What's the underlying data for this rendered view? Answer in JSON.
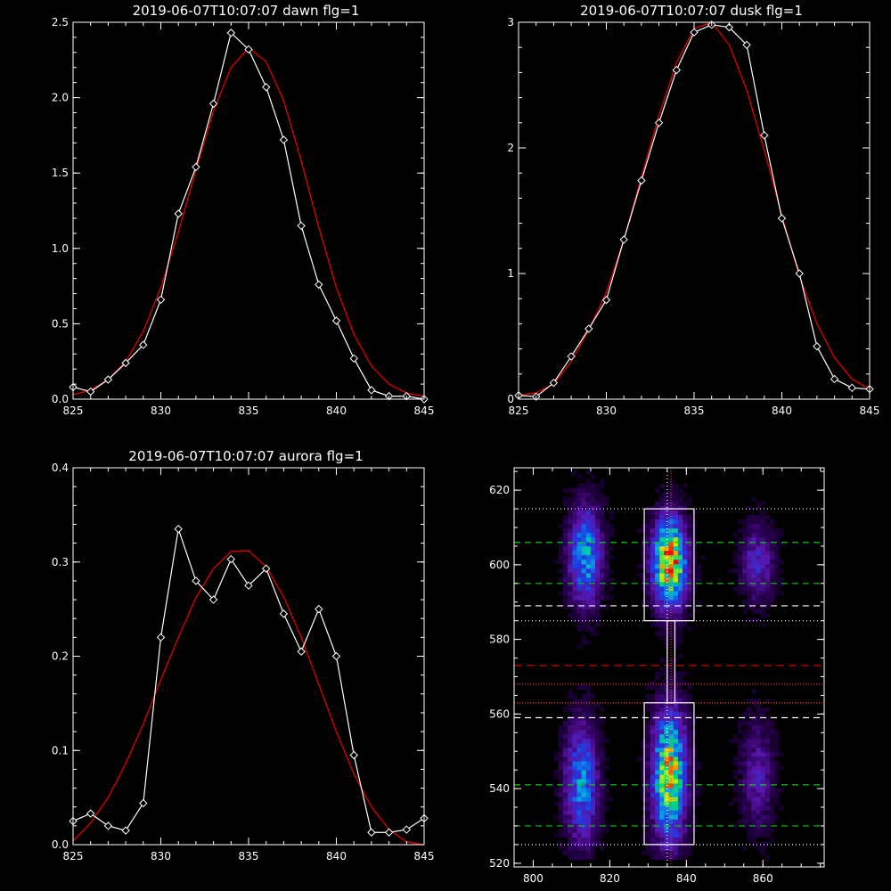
{
  "colors": {
    "background": "#000000",
    "axes": "#ffffff",
    "data_line": "#ffffff",
    "fit_line": "#e00000",
    "green_dash": "#00d000",
    "white_dash": "#ffffff",
    "red_dash": "#d00000"
  },
  "chart_data": [
    {
      "type": "line",
      "title": "2019-06-07T10:07:07 dawn flg=1",
      "xlim": [
        825,
        845
      ],
      "ylim": [
        0,
        2.5
      ],
      "xticks": [
        "825",
        "830",
        "835",
        "840",
        "845"
      ],
      "yticks": [
        "0.0",
        "0.5",
        "1.0",
        "1.5",
        "2.0",
        "2.5"
      ],
      "series": [
        {
          "x": [
            825,
            826,
            827,
            828,
            829,
            830,
            831,
            832,
            833,
            834,
            835,
            836,
            837,
            838,
            839,
            840,
            841,
            842,
            843,
            844,
            845
          ],
          "y": [
            0.08,
            0.05,
            0.13,
            0.24,
            0.36,
            0.66,
            1.23,
            1.54,
            1.96,
            2.43,
            2.32,
            2.07,
            1.72,
            1.15,
            0.76,
            0.52,
            0.27,
            0.06,
            0.02,
            0.02,
            0.0
          ]
        },
        {
          "x": [
            825,
            826,
            827,
            828,
            829,
            830,
            831,
            832,
            833,
            834,
            835,
            836,
            837,
            838,
            839,
            840,
            841,
            842,
            843,
            844,
            845
          ],
          "y": [
            0.03,
            0.06,
            0.13,
            0.25,
            0.45,
            0.74,
            1.11,
            1.52,
            1.91,
            2.2,
            2.33,
            2.24,
            1.98,
            1.58,
            1.14,
            0.74,
            0.43,
            0.22,
            0.1,
            0.04,
            0.02
          ]
        }
      ]
    },
    {
      "type": "line",
      "title": "2019-06-07T10:07:07 dusk flg=1",
      "xlim": [
        825,
        845
      ],
      "ylim": [
        0,
        3
      ],
      "xticks": [
        "825",
        "830",
        "835",
        "840",
        "845"
      ],
      "yticks": [
        "0",
        "1",
        "2",
        "3"
      ],
      "series": [
        {
          "x": [
            825,
            826,
            827,
            828,
            829,
            830,
            831,
            832,
            833,
            834,
            835,
            836,
            837,
            838,
            839,
            840,
            841,
            842,
            843,
            844,
            845
          ],
          "y": [
            0.03,
            0.02,
            0.13,
            0.34,
            0.56,
            0.79,
            1.27,
            1.74,
            2.2,
            2.62,
            2.92,
            2.98,
            2.96,
            2.82,
            2.1,
            1.44,
            1.0,
            0.42,
            0.16,
            0.09,
            0.08
          ]
        },
        {
          "x": [
            825,
            826,
            827,
            828,
            829,
            830,
            831,
            832,
            833,
            834,
            835,
            836,
            837,
            838,
            839,
            840,
            841,
            842,
            843,
            844,
            845
          ],
          "y": [
            0.03,
            0.05,
            0.12,
            0.3,
            0.55,
            0.85,
            1.27,
            1.77,
            2.26,
            2.68,
            2.95,
            3.0,
            2.82,
            2.46,
            1.98,
            1.46,
            0.98,
            0.6,
            0.33,
            0.16,
            0.08
          ]
        }
      ]
    },
    {
      "type": "line",
      "title": "2019-06-07T10:07:07 aurora flg=1",
      "xlim": [
        825,
        845
      ],
      "ylim": [
        0,
        0.4
      ],
      "xticks": [
        "825",
        "830",
        "835",
        "840",
        "845"
      ],
      "yticks": [
        "0.0",
        "0.1",
        "0.2",
        "0.3",
        "0.4"
      ],
      "series": [
        {
          "x": [
            825,
            826,
            827,
            828,
            829,
            830,
            831,
            832,
            833,
            834,
            835,
            836,
            837,
            838,
            839,
            840,
            841,
            842,
            843,
            844,
            845
          ],
          "y": [
            0.025,
            0.033,
            0.02,
            0.015,
            0.044,
            0.22,
            0.335,
            0.28,
            0.26,
            0.303,
            0.275,
            0.293,
            0.245,
            0.205,
            0.25,
            0.2,
            0.095,
            0.013,
            0.013,
            0.016,
            0.028
          ]
        },
        {
          "x": [
            825,
            826,
            827,
            828,
            829,
            830,
            831,
            832,
            833,
            834,
            835,
            836,
            837,
            838,
            839,
            840,
            841,
            842,
            843,
            844,
            845
          ],
          "y": [
            0.004,
            0.023,
            0.05,
            0.086,
            0.128,
            0.175,
            0.22,
            0.262,
            0.293,
            0.311,
            0.312,
            0.295,
            0.263,
            0.22,
            0.17,
            0.12,
            0.075,
            0.04,
            0.016,
            0.003,
            0.0
          ]
        }
      ]
    },
    {
      "type": "heatmap",
      "title": "",
      "xlim": [
        795,
        876
      ],
      "ylim": [
        519,
        626
      ],
      "xticks": [
        "800",
        "820",
        "840",
        "860"
      ],
      "yticks": [
        "520",
        "540",
        "560",
        "580",
        "600",
        "620"
      ],
      "blobs": [
        {
          "x": 813,
          "y": 602,
          "sx": 3,
          "sy": 9,
          "amp": 0.55
        },
        {
          "x": 835,
          "y": 600,
          "sx": 3,
          "sy": 8,
          "amp": 1.0
        },
        {
          "x": 858,
          "y": 600,
          "sx": 3,
          "sy": 7,
          "amp": 0.3
        },
        {
          "x": 812,
          "y": 541,
          "sx": 3,
          "sy": 11,
          "amp": 0.5
        },
        {
          "x": 835,
          "y": 543,
          "sx": 3,
          "sy": 12,
          "amp": 0.85
        },
        {
          "x": 858,
          "y": 543,
          "sx": 3,
          "sy": 10,
          "amp": 0.25
        }
      ],
      "boxes": [
        {
          "x0": 829,
          "x1": 842,
          "y0": 585,
          "y1": 615
        },
        {
          "x0": 829,
          "x1": 842,
          "y0": 525,
          "y1": 563
        },
        {
          "x0": 835,
          "x1": 837,
          "y0": 563,
          "y1": 585
        }
      ],
      "hlines": [
        {
          "y": 615,
          "style": "dotted-white"
        },
        {
          "y": 606,
          "style": "green"
        },
        {
          "y": 595,
          "style": "green"
        },
        {
          "y": 589,
          "style": "white"
        },
        {
          "y": 585,
          "style": "dotted-white"
        },
        {
          "y": 573,
          "style": "red"
        },
        {
          "y": 568,
          "style": "dotted-red"
        },
        {
          "y": 563,
          "style": "dotted-red"
        },
        {
          "y": 559,
          "style": "white"
        },
        {
          "y": 541,
          "style": "green"
        },
        {
          "y": 530,
          "style": "green"
        },
        {
          "y": 525,
          "style": "dotted-white"
        }
      ],
      "vlines": [
        {
          "x": 835,
          "style": "dotted-white"
        },
        {
          "x": 836,
          "style": "dotted-red"
        }
      ]
    }
  ]
}
